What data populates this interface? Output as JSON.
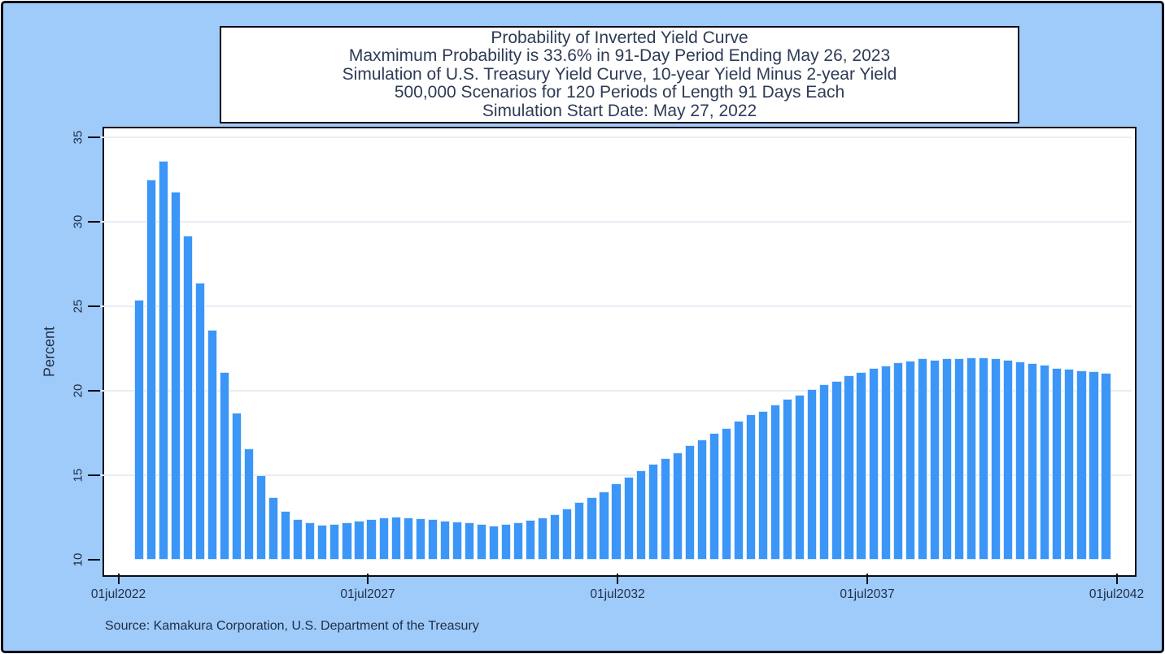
{
  "title_box": {
    "lines": [
      "Probability of Inverted Yield Curve",
      "Maxmimum Probability is 33.6% in 91-Day Period Ending May 26, 2023",
      "Simulation of U.S. Treasury Yield Curve, 10-year Yield Minus 2-year Yield",
      "500,000 Scenarios for 120 Periods of Length 91 Days Each",
      "Simulation Start Date: May 27, 2022"
    ]
  },
  "source_note": "Source: Kamakura Corporation, U.S. Department of the Treasury",
  "chart_data": {
    "type": "bar",
    "title": "Probability of Inverted Yield Curve",
    "xlabel": "",
    "ylabel": "Percent",
    "ylim": [
      10,
      35
    ],
    "grid": "horizontal",
    "legend": "none",
    "max_value_pct": 33.6,
    "max_value_period_end": "May 26, 2023",
    "period_length_days": 91,
    "y_ticks": [
      10,
      15,
      20,
      25,
      30,
      35
    ],
    "x_tick_labels": [
      "01jul2022",
      "01jul2027",
      "01jul2032",
      "01jul2037",
      "01jul2042"
    ],
    "values": [
      25.4,
      32.5,
      33.6,
      31.8,
      29.2,
      26.4,
      23.6,
      21.1,
      18.7,
      16.6,
      15.0,
      13.7,
      12.9,
      12.4,
      12.2,
      12.05,
      12.1,
      12.2,
      12.3,
      12.4,
      12.5,
      12.55,
      12.5,
      12.45,
      12.4,
      12.3,
      12.25,
      12.2,
      12.1,
      12.0,
      12.1,
      12.2,
      12.35,
      12.5,
      12.7,
      13.05,
      13.4,
      13.7,
      14.05,
      14.5,
      14.9,
      15.3,
      15.65,
      16.0,
      16.35,
      16.8,
      17.1,
      17.5,
      17.8,
      18.2,
      18.6,
      18.8,
      19.2,
      19.5,
      19.75,
      20.1,
      20.4,
      20.6,
      20.9,
      21.1,
      21.35,
      21.5,
      21.7,
      21.8,
      21.9,
      21.85,
      21.9,
      21.9,
      21.95,
      21.95,
      21.9,
      21.85,
      21.75,
      21.65,
      21.55,
      21.35,
      21.3,
      21.2,
      21.15,
      21.05
    ]
  },
  "colors": {
    "background": "#9ecbfa",
    "bar_fill": "#3b96f7",
    "bar_outline": "#d9eafc",
    "plot_background": "#ffffff",
    "gridline": "#e7eef5",
    "frame_border": "#0c0c14",
    "title_text": "#2e3b55",
    "axis_text": "#222f49"
  }
}
